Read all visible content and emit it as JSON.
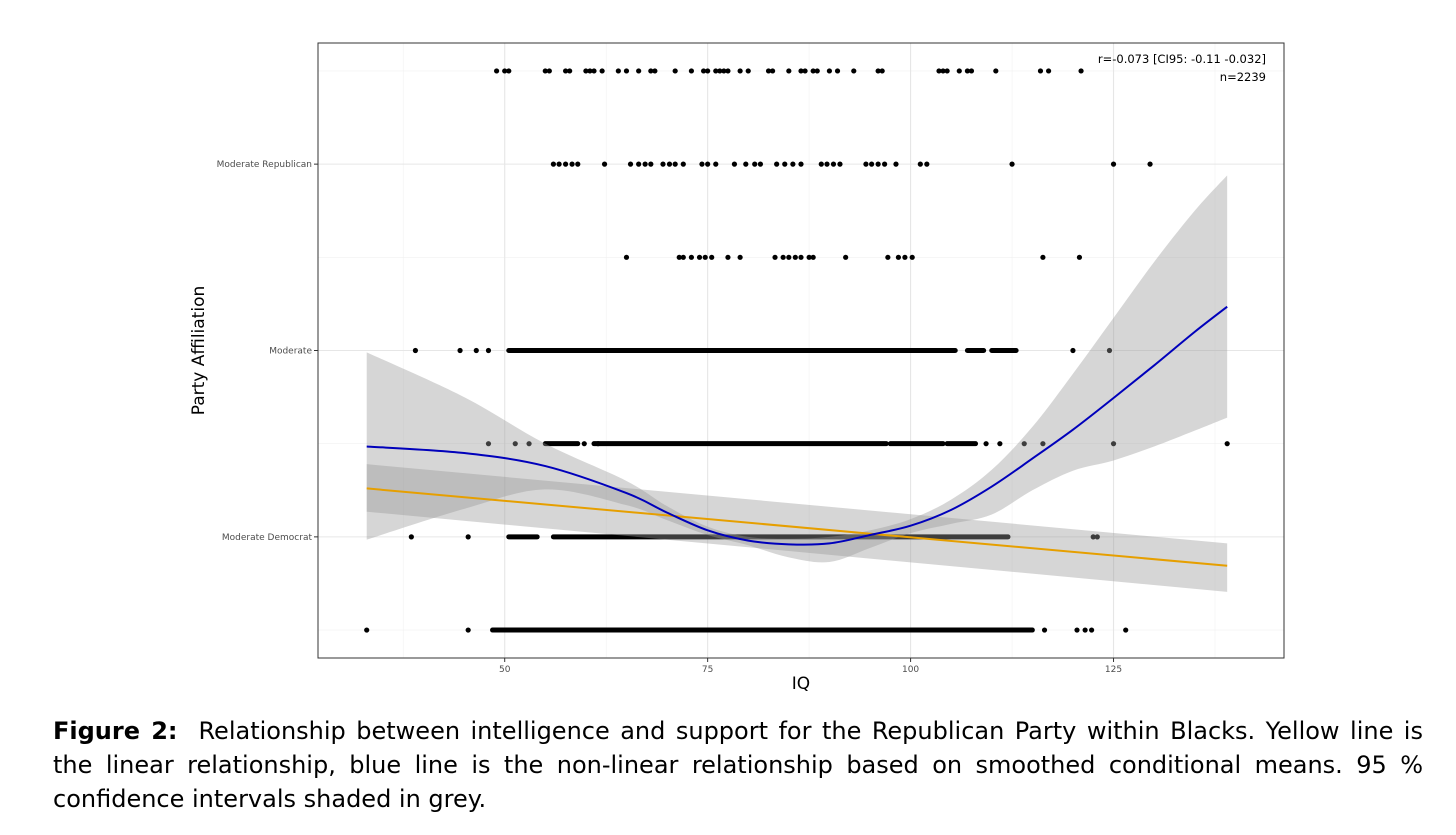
{
  "chart_data": {
    "type": "scatter",
    "title": "",
    "xlabel": "IQ",
    "ylabel": "Party Affiliation",
    "xlim": [
      27,
      146
    ],
    "ylim": [
      0.7,
      7.3
    ],
    "x_ticks": [
      50,
      75,
      100,
      125
    ],
    "y_ticks": [
      {
        "value": 2,
        "label": "Moderate Democrat"
      },
      {
        "value": 4,
        "label": "Moderate"
      },
      {
        "value": 6,
        "label": "Moderate Republican"
      }
    ],
    "grid": true,
    "annotation": [
      "r=-0.073 [CI95: -0.11 -0.032]",
      "n=2239"
    ],
    "points": [
      {
        "y": 7,
        "x": [
          49,
          50,
          50.5,
          55,
          55.5,
          57.5,
          58,
          60,
          60.5,
          61,
          62,
          64,
          65,
          66.5,
          68,
          68.5,
          71,
          73,
          74.5,
          75,
          76,
          76.5,
          77,
          77.5,
          79,
          80,
          82.5,
          83,
          85,
          86.5,
          87,
          88,
          88.5,
          90,
          91,
          93,
          96,
          96.5,
          103.5,
          104,
          104.5,
          106,
          107,
          107.5,
          110.5,
          116,
          117,
          121
        ]
      },
      {
        "y": 6,
        "x": [
          56,
          56.7,
          57.5,
          58.3,
          59,
          62.3,
          65.5,
          66.5,
          67.3,
          68,
          69.5,
          70.3,
          71,
          72,
          74.3,
          75,
          76,
          78.3,
          79.7,
          80.8,
          81.5,
          83.5,
          84.5,
          85.5,
          86.5,
          89,
          89.7,
          90.5,
          91.3,
          94.5,
          95.2,
          96,
          96.8,
          98.2,
          101.2,
          102,
          112.5,
          125,
          129.5
        ]
      },
      {
        "y": 5,
        "x": [
          65,
          71.5,
          72,
          73,
          74,
          74.7,
          75.5,
          77.5,
          79,
          83.3,
          84.3,
          85,
          85.8,
          86.5,
          87.5,
          88,
          92,
          97.2,
          98.5,
          99.3,
          100.2,
          116.3,
          120.8
        ]
      },
      {
        "y": 4,
        "ranges": [
          [
            50.5,
            104
          ],
          [
            103.5,
            105.5
          ],
          [
            107,
            109
          ],
          [
            110,
            113
          ]
        ],
        "x": [
          39,
          44.5,
          46.5,
          48,
          120,
          124.5
        ]
      },
      {
        "y": 3,
        "ranges": [
          [
            55,
            59
          ],
          [
            61,
            97
          ],
          [
            97.5,
            104
          ],
          [
            104.5,
            108
          ]
        ],
        "x": [
          48,
          51.3,
          53,
          59.8,
          61.5,
          109.3,
          111,
          114,
          116.3,
          125,
          139
        ]
      },
      {
        "y": 2,
        "ranges": [
          [
            50.5,
            54
          ],
          [
            56,
            112
          ]
        ],
        "x": [
          38.5,
          45.5,
          122.5,
          123
        ]
      },
      {
        "y": 1,
        "ranges": [
          [
            48.5,
            113
          ],
          [
            113,
            115
          ]
        ],
        "x": [
          33,
          45.5,
          116.5,
          120.5,
          121.5,
          122.3,
          126.5
        ]
      }
    ],
    "series": [
      {
        "name": "linear fit",
        "color": "#E69F00",
        "x": [
          33,
          139
        ],
        "y": [
          2.52,
          1.69
        ],
        "ci_upper": [
          2.78,
          1.93
        ],
        "ci_lower": [
          2.27,
          1.41
        ]
      },
      {
        "name": "smoothed conditional means",
        "color": "#0000BB",
        "x": [
          33,
          45,
          55,
          65,
          70,
          75,
          80,
          85,
          90,
          95,
          100,
          105,
          110,
          115,
          120,
          125,
          130,
          135,
          139
        ],
        "y": [
          2.97,
          2.9,
          2.76,
          2.47,
          2.26,
          2.07,
          1.96,
          1.92,
          1.93,
          2.02,
          2.12,
          2.29,
          2.54,
          2.84,
          3.15,
          3.49,
          3.84,
          4.2,
          4.47
        ],
        "ci_upper": [
          3.98,
          3.5,
          3.0,
          2.6,
          2.33,
          2.11,
          2.0,
          1.98,
          2.0,
          2.07,
          2.19,
          2.4,
          2.72,
          3.18,
          3.75,
          4.35,
          4.95,
          5.5,
          5.88
        ],
        "ci_lower": [
          1.97,
          2.3,
          2.51,
          2.34,
          2.18,
          2.02,
          1.91,
          1.78,
          1.73,
          1.88,
          2.04,
          2.14,
          2.24,
          2.5,
          2.71,
          2.82,
          2.97,
          3.14,
          3.28
        ]
      }
    ]
  },
  "caption": {
    "label": "Figure 2:",
    "text": "Relationship between intelligence and support for the Republican Party within Blacks. Yellow line is the linear relationship, blue line is the non-linear relationship based on smoothed conditional means. 95 % confidence intervals shaded in grey."
  }
}
